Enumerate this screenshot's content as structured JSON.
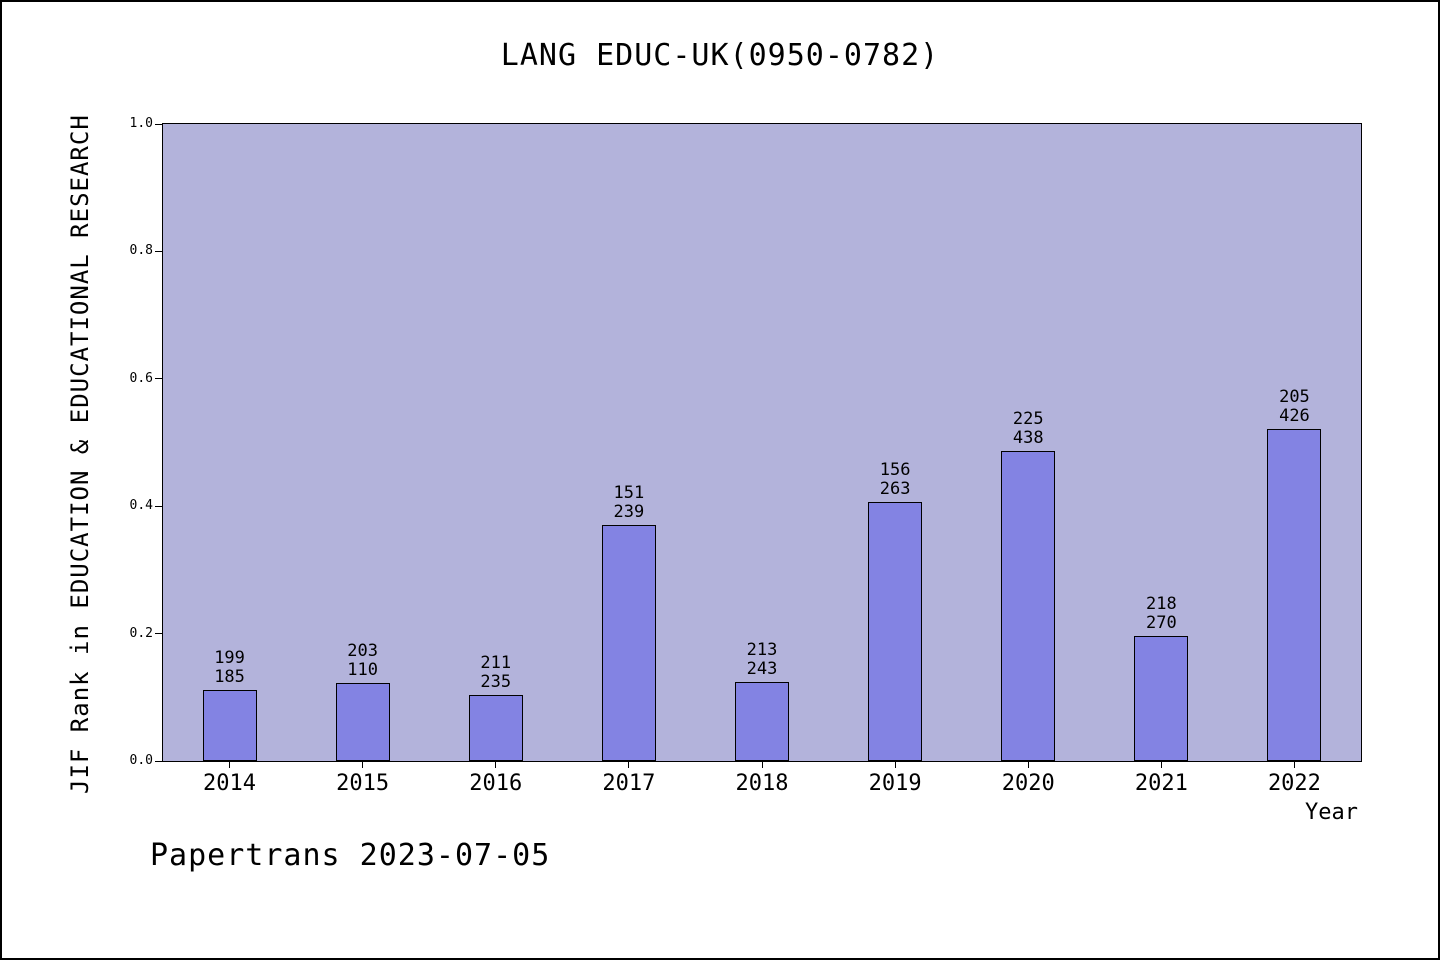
{
  "page": {
    "footer": "Papertrans 2023-07-05"
  },
  "colors": {
    "plot_background": "#b3b3db",
    "bar_fill": "#8383e3",
    "bar_border": "#000000",
    "text": "#000000"
  },
  "chart_data": {
    "type": "bar",
    "title": "LANG EDUC-UK(0950-0782)",
    "xlabel": "Year",
    "ylabel": "JIF Rank in EDUCATION & EDUCATIONAL RESEARCH",
    "ylim": [
      0.0,
      1.0
    ],
    "yticks": [
      "0.0",
      "0.2",
      "0.4",
      "0.6",
      "0.8",
      "1.0"
    ],
    "categories": [
      "2014",
      "2015",
      "2016",
      "2017",
      "2018",
      "2019",
      "2020",
      "2021",
      "2022"
    ],
    "values": [
      0.112,
      0.122,
      0.103,
      0.371,
      0.124,
      0.407,
      0.486,
      0.196,
      0.521
    ],
    "bar_top_labels": [
      [
        "199",
        "185"
      ],
      [
        "203",
        "110"
      ],
      [
        "211",
        "235"
      ],
      [
        "151",
        "239"
      ],
      [
        "213",
        "243"
      ],
      [
        "156",
        "263"
      ],
      [
        "225",
        "438"
      ],
      [
        "218",
        "270"
      ],
      [
        "205",
        "426"
      ]
    ],
    "grid": false,
    "legend": null
  }
}
